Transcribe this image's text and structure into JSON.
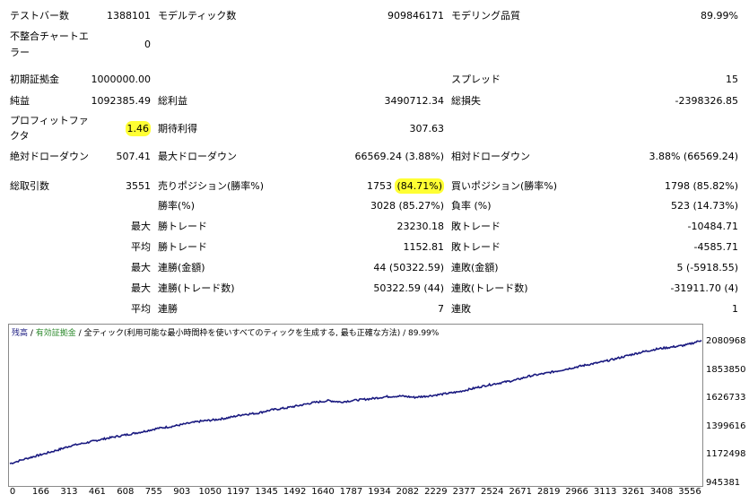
{
  "report": {
    "test_bars_label": "テストバー数",
    "test_bars_value": "1388101",
    "model_ticks_label": "モデルティック数",
    "model_ticks_value": "909846171",
    "model_quality_label": "モデリング品質",
    "model_quality_value": "89.99%",
    "mismatch_label_1": "不整合チャートエ",
    "mismatch_label_2": "ラー",
    "mismatch_value": "0",
    "initial_deposit_label": "初期証拠金",
    "initial_deposit_value": "1000000.00",
    "spread_label": "スプレッド",
    "spread_value": "15",
    "net_profit_label": "純益",
    "net_profit_value": "1092385.49",
    "gross_profit_label": "総利益",
    "gross_profit_value": "3490712.34",
    "gross_loss_label": "総損失",
    "gross_loss_value": "-2398326.85",
    "profit_factor_label_1": "プロフィットファ",
    "profit_factor_label_2": "クタ",
    "profit_factor_value": "1.46",
    "expected_payoff_label": "期待利得",
    "expected_payoff_value": "307.63",
    "abs_drawdown_label": "絶対ドローダウン",
    "abs_drawdown_value": "507.41",
    "max_drawdown_label": "最大ドローダウン",
    "max_drawdown_value": "66569.24 (3.88%)",
    "rel_drawdown_label": "相対ドローダウン",
    "rel_drawdown_value": "3.88% (66569.24)",
    "total_trades_label": "総取引数",
    "total_trades_value": "3551",
    "short_label": "売りポジション(勝率%)",
    "short_count": "1753",
    "short_rate": "(84.71%)",
    "long_label": "買いポジション(勝率%)",
    "long_value": "1798 (85.82%)",
    "win_rate_label": "勝率(%)",
    "win_rate_value": "3028 (85.27%)",
    "loss_rate_label": "負率 (%)",
    "loss_rate_value": "523 (14.73%)",
    "max_label": "最大",
    "avg_label": "平均",
    "win_trade_label": "勝トレード",
    "loss_trade_label": "敗トレード",
    "max_win_trade_value": "23230.18",
    "max_loss_trade_value": "-10484.71",
    "avg_win_trade_value": "1152.81",
    "avg_loss_trade_value": "-4585.71",
    "consec_win_amount_label": "連勝(金額)",
    "consec_win_amount_value": "44 (50322.59)",
    "consec_loss_amount_label": "連敗(金額)",
    "consec_loss_amount_value": "5 (-5918.55)",
    "consec_win_trades_label": "連勝(トレード数)",
    "consec_win_trades_value": "50322.59 (44)",
    "consec_loss_trades_label": "連敗(トレード数)",
    "consec_loss_trades_value": "-31911.70 (4)",
    "avg_consec_win_label": "連勝",
    "avg_consec_win_value": "7",
    "avg_consec_loss_label": "連敗",
    "avg_consec_loss_value": "1"
  },
  "chart_legend": {
    "balance": "残高",
    "sep1": " / ",
    "equity": "有効証拠金",
    "sep2": " / ",
    "method": "全ティック(利用可能な最小時間枠を使いすべてのティックを生成する, 最も正確な方法)",
    "sep3": " / ",
    "quality": "89.99%"
  },
  "colors": {
    "balance": "#1a1a80",
    "equity": "#2e8b2e",
    "highlight": "#ffff33"
  },
  "chart_data": {
    "type": "line",
    "x_ticks": [
      "0",
      "166",
      "313",
      "461",
      "608",
      "755",
      "903",
      "1050",
      "1197",
      "1345",
      "1492",
      "1640",
      "1787",
      "1934",
      "2082",
      "2229",
      "2377",
      "2524",
      "2671",
      "2819",
      "2966",
      "3113",
      "3261",
      "3408",
      "3556"
    ],
    "y_ticks": [
      "2080968",
      "1853850",
      "1626733",
      "1399616",
      "1172498",
      "945381"
    ],
    "xlim": [
      0,
      3556
    ],
    "ylim": [
      945381,
      2080968
    ],
    "series": [
      {
        "name": "残高",
        "x": [
          0,
          100,
          166,
          250,
          313,
          400,
          461,
          530,
          608,
          680,
          755,
          830,
          903,
          980,
          1050,
          1120,
          1197,
          1270,
          1345,
          1420,
          1492,
          1560,
          1640,
          1700,
          1787,
          1860,
          1934,
          2010,
          2082,
          2150,
          2229,
          2300,
          2377,
          2450,
          2524,
          2600,
          2671,
          2750,
          2819,
          2900,
          2966,
          3040,
          3113,
          3190,
          3261,
          3330,
          3408,
          3480,
          3556
        ],
        "y": [
          1100000,
          1145000,
          1170000,
          1205000,
          1235000,
          1260000,
          1280000,
          1300000,
          1320000,
          1340000,
          1365000,
          1380000,
          1400000,
          1420000,
          1430000,
          1445000,
          1470000,
          1480000,
          1505000,
          1520000,
          1540000,
          1560000,
          1575000,
          1565000,
          1580000,
          1590000,
          1605000,
          1610000,
          1600000,
          1610000,
          1625000,
          1640000,
          1665000,
          1690000,
          1710000,
          1730000,
          1760000,
          1780000,
          1800000,
          1825000,
          1845000,
          1865000,
          1890000,
          1920000,
          1945000,
          1965000,
          1980000,
          1995000,
          2030000
        ]
      }
    ]
  }
}
